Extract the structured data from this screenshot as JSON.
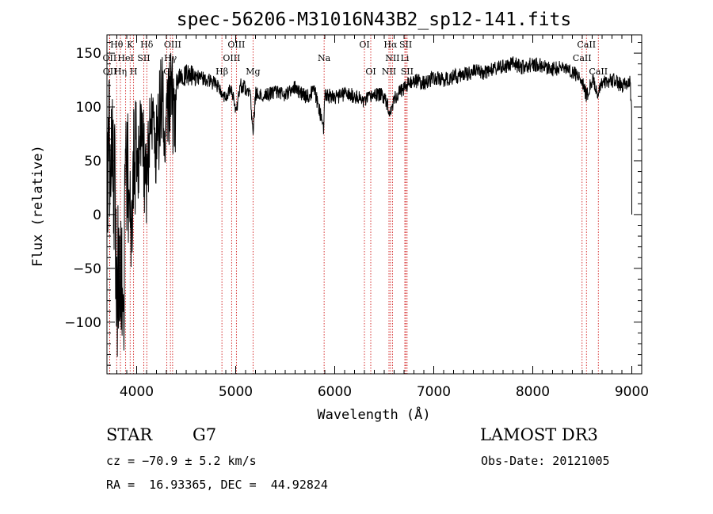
{
  "chart_data": {
    "type": "line",
    "title": "spec-56206-M31016N43B2_sp12-141.fits",
    "xlabel": "Wavelength (Å)",
    "ylabel": "Flux (relative)",
    "xlim": [
      3700,
      9100
    ],
    "ylim": [
      -148,
      167
    ],
    "xticks": [
      4000,
      5000,
      6000,
      7000,
      8000,
      9000
    ],
    "yticks": [
      -100,
      -50,
      0,
      50,
      100,
      150
    ],
    "x_minor_step": 100,
    "y_minor_step": 10,
    "spectrum_color": "#000000",
    "line_marker_color": "#cc0000",
    "spectrum_anchors": {
      "x": [
        3700,
        3720,
        3750,
        3780,
        3800,
        3830,
        3860,
        3890,
        3920,
        3950,
        3970,
        4000,
        4050,
        4100,
        4150,
        4200,
        4250,
        4300,
        4330,
        4350,
        4380,
        4400,
        4500,
        4600,
        4700,
        4800,
        4861,
        4900,
        4950,
        5000,
        5050,
        5100,
        5150,
        5175,
        5200,
        5300,
        5400,
        5500,
        5600,
        5700,
        5800,
        5890,
        5900,
        6000,
        6100,
        6200,
        6300,
        6400,
        6500,
        6563,
        6600,
        6700,
        6800,
        6900,
        7000,
        7100,
        7200,
        7300,
        7400,
        7500,
        7600,
        7700,
        7800,
        7900,
        8000,
        8100,
        8200,
        8300,
        8400,
        8500,
        8542,
        8600,
        8662,
        8700,
        8800,
        8900,
        8980,
        9000
      ],
      "y": [
        30,
        60,
        95,
        20,
        -80,
        -30,
        -100,
        10,
        40,
        -60,
        30,
        50,
        80,
        20,
        100,
        60,
        110,
        70,
        110,
        130,
        75,
        125,
        130,
        128,
        125,
        122,
        110,
        108,
        120,
        95,
        120,
        118,
        110,
        75,
        112,
        110,
        115,
        112,
        118,
        110,
        114,
        80,
        112,
        108,
        112,
        110,
        105,
        112,
        110,
        95,
        108,
        118,
        125,
        122,
        127,
        125,
        128,
        130,
        133,
        132,
        135,
        137,
        140,
        137,
        140,
        138,
        135,
        137,
        133,
        125,
        110,
        125,
        112,
        122,
        125,
        120,
        125,
        95
      ]
    },
    "spectral_lines": [
      {
        "name": "Hθ",
        "wavelength": 3798,
        "row": 0
      },
      {
        "name": "OII",
        "wavelength": 3727,
        "row": 1
      },
      {
        "name": "OII",
        "wavelength": 3729,
        "row": 2
      },
      {
        "name": "Hη",
        "wavelength": 3836,
        "row": 2
      },
      {
        "name": "K",
        "wavelength": 3934,
        "row": 0
      },
      {
        "name": "H",
        "wavelength": 3969,
        "row": 2
      },
      {
        "name": "HeI",
        "wavelength": 3889,
        "row": 1
      },
      {
        "name": "SII",
        "wavelength": 4072,
        "row": 1
      },
      {
        "name": "Hδ",
        "wavelength": 4102,
        "row": 0
      },
      {
        "name": "OIII",
        "wavelength": 4363,
        "row": 0
      },
      {
        "name": "Hγ",
        "wavelength": 4341,
        "row": 1
      },
      {
        "name": "G",
        "wavelength": 4305,
        "row": 2
      },
      {
        "name": "Hβ",
        "wavelength": 4861,
        "row": 2
      },
      {
        "name": "OIII",
        "wavelength": 5007,
        "row": 0
      },
      {
        "name": "OIII",
        "wavelength": 4959,
        "row": 1
      },
      {
        "name": "Mg",
        "wavelength": 5175,
        "row": 2
      },
      {
        "name": "Na",
        "wavelength": 5893,
        "row": 1
      },
      {
        "name": "OI",
        "wavelength": 6300,
        "row": 0
      },
      {
        "name": "OI",
        "wavelength": 6364,
        "row": 2
      },
      {
        "name": "Hα",
        "wavelength": 6563,
        "row": 0
      },
      {
        "name": "SII",
        "wavelength": 6717,
        "row": 0
      },
      {
        "name": "NII",
        "wavelength": 6583,
        "row": 1
      },
      {
        "name": "Li",
        "wavelength": 6708,
        "row": 1
      },
      {
        "name": "NII",
        "wavelength": 6548,
        "row": 2
      },
      {
        "name": "SII",
        "wavelength": 6731,
        "row": 2
      },
      {
        "name": "CaII",
        "wavelength": 8542,
        "row": 0
      },
      {
        "name": "CaII",
        "wavelength": 8498,
        "row": 1
      },
      {
        "name": "CaII",
        "wavelength": 8662,
        "row": 2
      }
    ]
  },
  "info": {
    "class": "STAR",
    "subclass": "G7",
    "survey": "LAMOST DR3",
    "cz": "cz = −70.9 ± 5.2 km/s",
    "obs_date": "Obs-Date: 20121005",
    "coords": "RA =  16.93365, DEC =  44.92824"
  }
}
